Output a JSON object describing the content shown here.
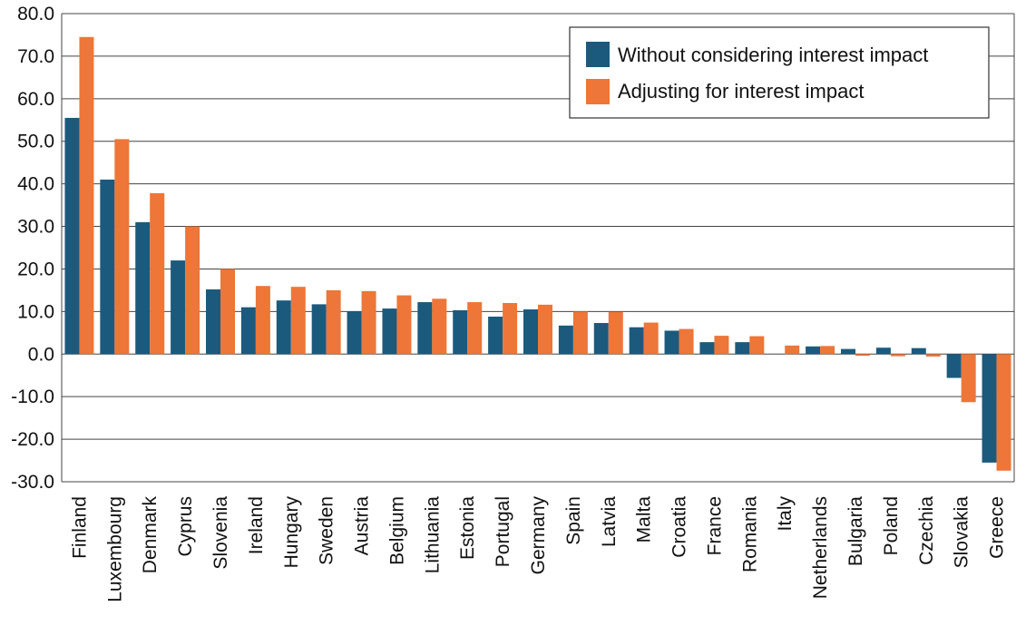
{
  "chart_data": {
    "type": "bar",
    "title": "",
    "xlabel": "",
    "ylabel": "",
    "ylim": [
      -30,
      80
    ],
    "yticks": [
      -30,
      -20,
      -10,
      0,
      10,
      20,
      30,
      40,
      50,
      60,
      70,
      80
    ],
    "ytick_labels": [
      "-30.0",
      "-20.0",
      "-10.0",
      "0.0",
      "10.0",
      "20.0",
      "30.0",
      "40.0",
      "50.0",
      "60.0",
      "70.0",
      "80.0"
    ],
    "grid": true,
    "legend_position": "top-right",
    "categories": [
      "Finland",
      "Luxembourg",
      "Denmark",
      "Cyprus",
      "Slovenia",
      "Ireland",
      "Hungary",
      "Sweden",
      "Austria",
      "Belgium",
      "Lithuania",
      "Estonia",
      "Portugal",
      "Germany",
      "Spain",
      "Latvia",
      "Malta",
      "Croatia",
      "France",
      "Romania",
      "Italy",
      "Netherlands",
      "Bulgaria",
      "Poland",
      "Czechia",
      "Slovakia",
      "Greece"
    ],
    "series": [
      {
        "name": "Without considering interest impact",
        "color": "#1c5a7d",
        "values": [
          55.5,
          41.0,
          31.0,
          22.0,
          15.2,
          11.0,
          12.6,
          11.7,
          10.0,
          10.7,
          12.2,
          10.3,
          8.8,
          10.5,
          6.7,
          7.3,
          6.3,
          5.5,
          2.8,
          2.8,
          0.0,
          1.8,
          1.2,
          1.5,
          1.4,
          -5.6,
          -25.5
        ]
      },
      {
        "name": "Adjusting for interest impact",
        "color": "#ed7638",
        "values": [
          74.5,
          50.5,
          37.8,
          30.0,
          20.0,
          16.0,
          15.8,
          15.0,
          14.8,
          13.8,
          13.0,
          12.2,
          12.0,
          11.6,
          10.0,
          9.9,
          7.4,
          5.9,
          4.3,
          4.2,
          2.0,
          1.9,
          -0.4,
          -0.5,
          -0.6,
          -11.3,
          -27.4
        ]
      }
    ]
  }
}
